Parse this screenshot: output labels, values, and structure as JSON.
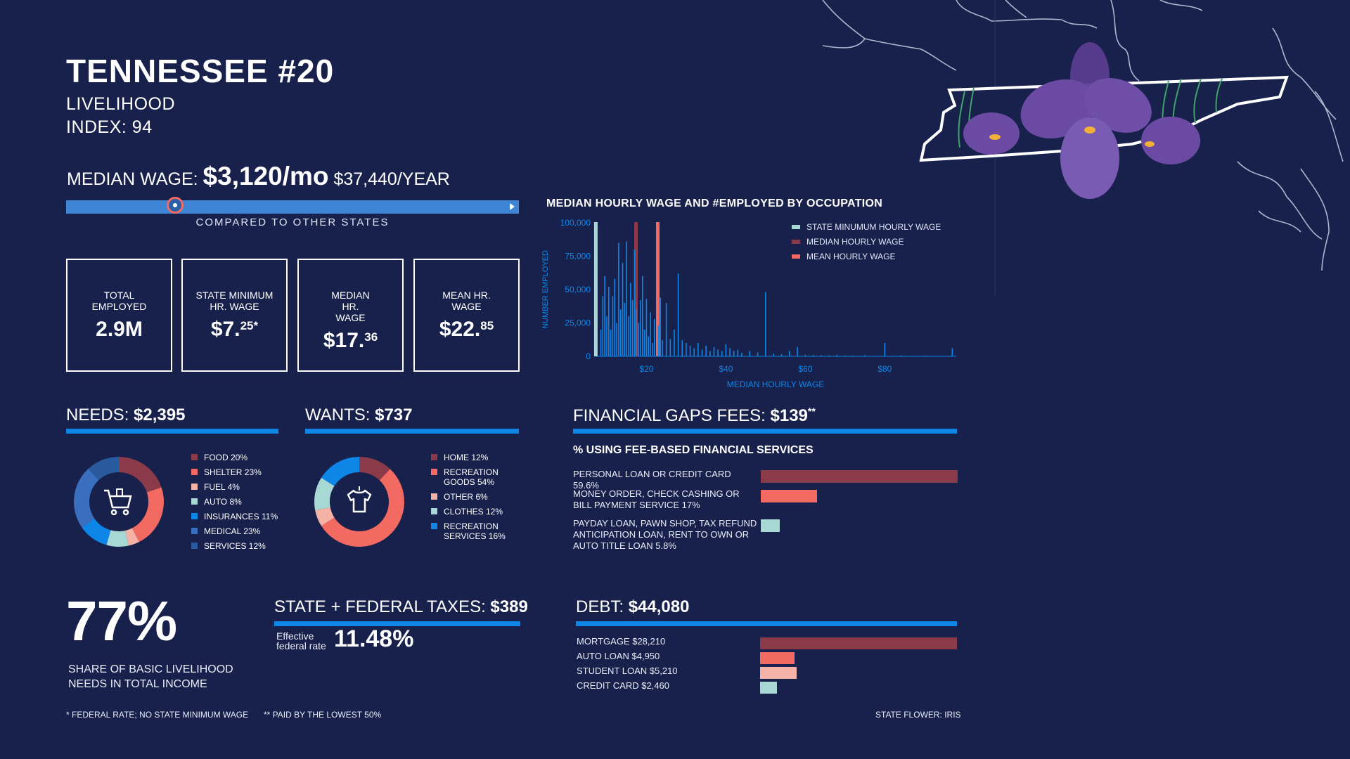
{
  "header": {
    "title": "TENNESSEE #20",
    "subtitle_line1": "LIVELIHOOD",
    "subtitle_line2": "INDEX: 94"
  },
  "median_wage": {
    "label": "MEDIAN WAGE:",
    "monthly": "$3,120/mo",
    "yearly": "$37,440/YEAR",
    "comparison_label": "COMPARED TO OTHER STATES",
    "rank_position_fraction": 0.24
  },
  "stats": [
    {
      "label": "TOTAL EMPLOYED",
      "value": "2.9M",
      "sup": ""
    },
    {
      "label": "STATE MINIMUM HR. WAGE",
      "value": "$7.",
      "sup": "25*"
    },
    {
      "label": "MEDIAN HR. WAGE",
      "value": "$17.",
      "sup": "36"
    },
    {
      "label": "MEAN HR. WAGE",
      "value": "$22.",
      "sup": "85"
    }
  ],
  "chart_data": [
    {
      "type": "bar",
      "title": "MEDIAN HOURLY WAGE AND #EMPLOYED BY OCCUPATION",
      "xlabel": "MEDIAN HOURLY WAGE",
      "ylabel": "NUMBER EMPLOYED",
      "xlim": [
        7,
        98
      ],
      "ylim": [
        0,
        100000
      ],
      "x_ticks": [
        "$20",
        "$40",
        "$60",
        "$80"
      ],
      "x_tick_values": [
        20,
        40,
        60,
        80
      ],
      "y_ticks": [
        "0",
        "25,000",
        "50,000",
        "75,000",
        "100,000"
      ],
      "y_tick_values": [
        0,
        25000,
        50000,
        75000,
        100000
      ],
      "reference_lines": [
        {
          "name": "STATE MINUMUM HOURLY WAGE",
          "x": 7.25,
          "color": "#a8d8d4"
        },
        {
          "name": "MEDIAN HOURLY WAGE",
          "x": 17.36,
          "color": "#8b3a4a"
        },
        {
          "name": "MEAN HOURLY WAGE",
          "x": 22.85,
          "color": "#f26a62"
        }
      ],
      "series": [
        {
          "x": [
            8.5,
            9,
            9.5,
            10,
            10.5,
            11,
            11.5,
            12,
            12.5,
            13,
            13.5,
            14,
            14.5,
            15,
            15.5,
            16,
            16.5,
            17,
            17.5,
            18,
            18.5,
            19,
            19.5,
            20,
            20.5,
            21,
            21.5,
            22,
            23,
            23.5,
            24,
            25,
            26,
            27,
            28,
            29,
            30,
            31,
            32,
            33,
            34,
            35,
            36,
            37,
            38,
            39,
            40,
            41,
            42,
            43,
            44,
            46,
            48,
            50,
            52,
            54,
            56,
            58,
            60,
            62,
            64,
            66,
            68,
            70,
            72,
            75,
            80,
            84,
            90,
            97
          ],
          "y": [
            20000,
            45000,
            60000,
            30000,
            52000,
            20000,
            45000,
            58000,
            25000,
            85000,
            35000,
            70000,
            40000,
            86000,
            30000,
            55000,
            42000,
            80000,
            35000,
            25000,
            42000,
            60000,
            20000,
            43000,
            15000,
            33000,
            10000,
            28000,
            23000,
            44000,
            12000,
            40000,
            13000,
            20000,
            62000,
            12000,
            10000,
            8000,
            6000,
            10000,
            5000,
            8000,
            4000,
            7000,
            5000,
            4000,
            9000,
            6000,
            4000,
            5000,
            2500,
            4000,
            3000,
            48000,
            2000,
            1500,
            4000,
            7000,
            1200,
            1000,
            800,
            700,
            1000,
            600,
            500,
            800,
            10000,
            500,
            400,
            6000
          ]
        }
      ]
    },
    {
      "type": "pie",
      "title": "NEEDS: $2,395",
      "labels": [
        "FOOD 20%",
        "SHELTER 23%",
        "FUEL 4%",
        "AUTO 8%",
        "INSURANCES 11%",
        "MEDICAL 23%",
        "SERVICES 12%"
      ],
      "values": [
        20,
        23,
        4,
        8,
        11,
        23,
        12
      ],
      "colors": [
        "#8b3a4a",
        "#f26a62",
        "#f5b3a8",
        "#a8d8d4",
        "#0e86e8",
        "#3a6fc0",
        "#2a5a9e"
      ]
    },
    {
      "type": "pie",
      "title": "WANTS: $737",
      "labels": [
        "HOME 12%",
        "RECREATION GOODS 54%",
        "OTHER 6%",
        "CLOTHES 12%",
        "RECREATION SERVICES 16%"
      ],
      "values": [
        12,
        54,
        6,
        12,
        16
      ],
      "colors": [
        "#8b3a4a",
        "#f26a62",
        "#f5b3a8",
        "#a8d8d4",
        "#0e86e8"
      ]
    },
    {
      "type": "bar",
      "title": "% USING FEE-BASED FINANCIAL SERVICES",
      "categories": [
        "PERSONAL LOAN OR CREDIT CARD 59.6%",
        "MONEY ORDER, CHECK CASHING OR BILL PAYMENT SERVICE 17%",
        "PAYDAY LOAN, PAWN SHOP, TAX REFUND ANTICIPATION LOAN, RENT TO OWN OR AUTO TITLE LOAN 5.8%"
      ],
      "values": [
        59.6,
        17,
        5.8
      ],
      "colors": [
        "#8b3a4a",
        "#f26a62",
        "#a8d8d4"
      ]
    },
    {
      "type": "bar",
      "title": "DEBT: $44,080",
      "categories": [
        "MORTGAGE $28,210",
        "AUTO LOAN $4,950",
        "STUDENT LOAN $5,210",
        "CREDIT CARD $2,460"
      ],
      "values": [
        28210,
        4950,
        5210,
        2460
      ],
      "colors": [
        "#8b3a4a",
        "#f26a62",
        "#f5b3a8",
        "#a8d8d4"
      ]
    }
  ],
  "needs": {
    "label": "NEEDS:",
    "amount": "$2,395"
  },
  "wants": {
    "label": "WANTS:",
    "amount": "$737"
  },
  "gaps": {
    "label": "FINANCIAL GAPS FEES:",
    "amount": "$139",
    "mark": "**",
    "subhead": "% USING FEE-BASED FINANCIAL SERVICES"
  },
  "share": {
    "value": "77%",
    "line1": "SHARE OF BASIC LIVELIHOOD",
    "line2": "NEEDS IN TOTAL INCOME"
  },
  "taxes": {
    "label": "STATE + FEDERAL TAXES:",
    "amount": "$389",
    "rate_label1": "Effective",
    "rate_label2": "federal rate",
    "rate": "11.48%"
  },
  "debt": {
    "label": "DEBT:",
    "amount": "$44,080"
  },
  "footnotes": {
    "f1": "* FEDERAL RATE; NO STATE MINIMUM WAGE",
    "f2": "** PAID BY THE LOWEST 50%",
    "flower": "STATE FLOWER: IRIS"
  },
  "colors": {
    "background": "#17214b",
    "accent_blue": "#0e86e8",
    "dark_red": "#8b3a4a",
    "coral": "#f26a62",
    "peach": "#f5b3a8",
    "teal": "#a8d8d4"
  }
}
